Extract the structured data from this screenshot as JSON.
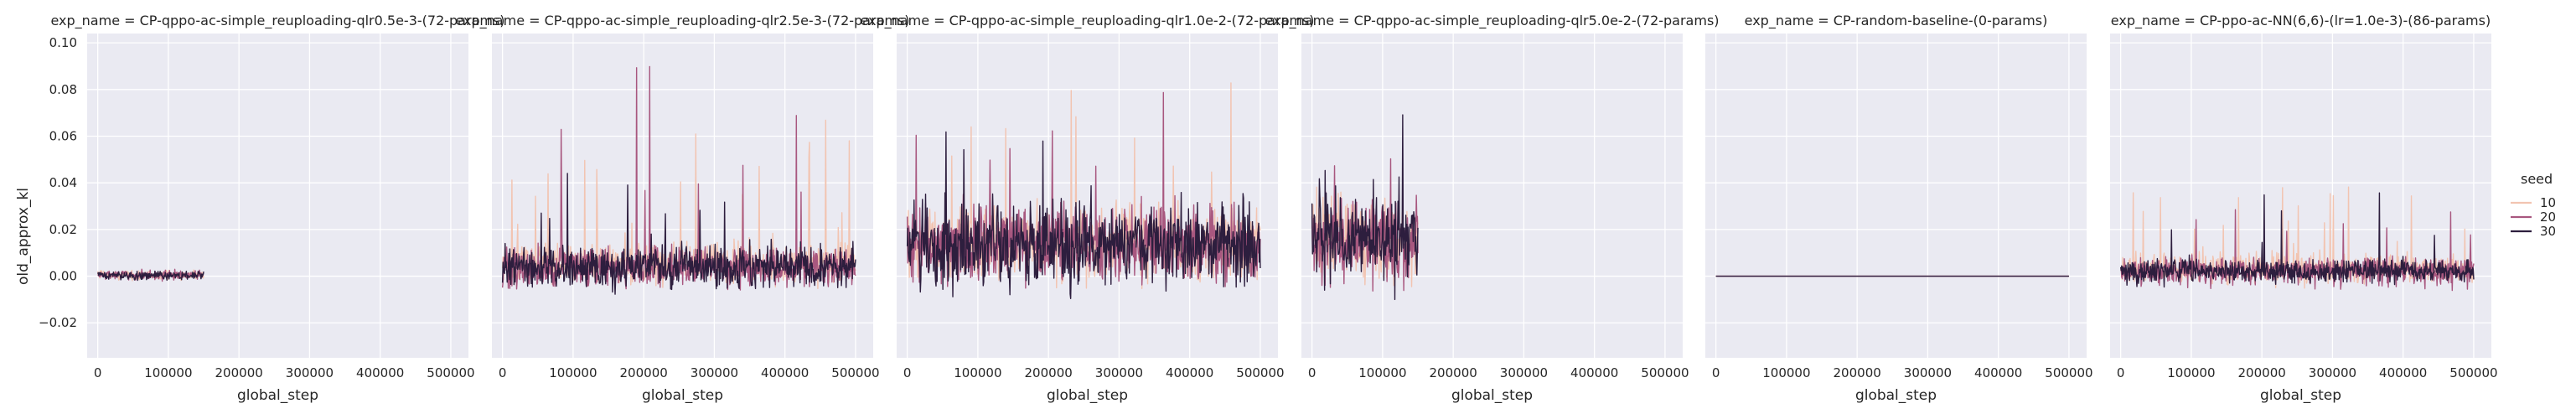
{
  "chart_data": {
    "type": "line",
    "ylabel": "old_approx_kl",
    "xlabel": "global_step",
    "xlim": [
      -15000,
      525000
    ],
    "ylim": [
      -0.035,
      0.104
    ],
    "xticks": [
      0,
      100000,
      200000,
      300000,
      400000,
      500000
    ],
    "xtick_labels": [
      "0",
      "100000",
      "200000",
      "300000",
      "400000",
      "500000"
    ],
    "yticks": [
      -0.02,
      0.0,
      0.02,
      0.04,
      0.06,
      0.08,
      0.1
    ],
    "ytick_labels": [
      "−0.02",
      "0.00",
      "0.02",
      "0.04",
      "0.06",
      "0.08",
      "0.10"
    ],
    "grid": true,
    "legend": {
      "title": "seed",
      "placement": "right",
      "entries": [
        {
          "label": "10",
          "color": "#f2c4b1"
        },
        {
          "label": "20",
          "color": "#a8577f"
        },
        {
          "label": "30",
          "color": "#2d1e3e"
        }
      ]
    },
    "facets": [
      {
        "title": "exp_name = CP-qppo-ac-simple_reuploading-qlr0.5e-3-(72-params)",
        "x_range": [
          0,
          150000
        ],
        "series": [
          {
            "seed": "10",
            "mean": 0.0005,
            "spread": 0.0015,
            "spike_prob": 0.0,
            "spike_max": 0.0
          },
          {
            "seed": "20",
            "mean": 0.0005,
            "spread": 0.0016,
            "spike_prob": 0.0,
            "spike_max": 0.0
          },
          {
            "seed": "30",
            "mean": 0.0003,
            "spread": 0.0015,
            "spike_prob": 0.0,
            "spike_max": 0.0
          }
        ]
      },
      {
        "title": "exp_name = CP-qppo-ac-simple_reuploading-qlr2.5e-3-(72-params)",
        "x_range": [
          0,
          500000
        ],
        "series": [
          {
            "seed": "10",
            "mean": 0.006,
            "spread": 0.007,
            "spike_prob": 0.025,
            "spike_max": 0.068
          },
          {
            "seed": "20",
            "mean": 0.004,
            "spread": 0.007,
            "spike_prob": 0.02,
            "spike_max": 0.097
          },
          {
            "seed": "30",
            "mean": 0.004,
            "spread": 0.007,
            "spike_prob": 0.012,
            "spike_max": 0.045
          }
        ]
      },
      {
        "title": "exp_name = CP-qppo-ac-simple_reuploading-qlr1.0e-2-(72-params)",
        "x_range": [
          0,
          500000
        ],
        "series": [
          {
            "seed": "10",
            "mean": 0.014,
            "spread": 0.012,
            "spike_prob": 0.02,
            "spike_max": 0.093
          },
          {
            "seed": "20",
            "mean": 0.014,
            "spread": 0.013,
            "spike_prob": 0.015,
            "spike_max": 0.083
          },
          {
            "seed": "30",
            "mean": 0.013,
            "spread": 0.014,
            "spike_prob": 0.01,
            "spike_max": 0.064
          }
        ]
      },
      {
        "title": "exp_name = CP-qppo-ac-simple_reuploading-qlr5.0e-2-(72-params)",
        "x_range": [
          0,
          150000
        ],
        "series": [
          {
            "seed": "10",
            "mean": 0.016,
            "spread": 0.014,
            "spike_prob": 0.03,
            "spike_max": 0.07
          },
          {
            "seed": "20",
            "mean": 0.016,
            "spread": 0.015,
            "spike_prob": 0.03,
            "spike_max": 0.07
          },
          {
            "seed": "30",
            "mean": 0.016,
            "spread": 0.016,
            "spike_prob": 0.035,
            "spike_max": 0.07
          }
        ]
      },
      {
        "title": "exp_name = CP-random-baseline-(0-params)",
        "x_range": [
          0,
          500000
        ],
        "series": [
          {
            "seed": "10",
            "mean": 0.0,
            "spread": 0.0,
            "spike_prob": 0.0,
            "spike_max": 0.0
          },
          {
            "seed": "20",
            "mean": 0.0,
            "spread": 0.0,
            "spike_prob": 0.0,
            "spike_max": 0.0
          },
          {
            "seed": "30",
            "mean": 0.0,
            "spread": 0.0,
            "spike_prob": 0.0,
            "spike_max": 0.0
          }
        ]
      },
      {
        "title": "exp_name = CP-ppo-ac-NN(6,6)-(lr=1.0e-3)-(86-params)",
        "x_range": [
          0,
          500000
        ],
        "series": [
          {
            "seed": "10",
            "mean": 0.003,
            "spread": 0.005,
            "spike_prob": 0.03,
            "spike_max": 0.04
          },
          {
            "seed": "20",
            "mean": 0.002,
            "spread": 0.005,
            "spike_prob": 0.02,
            "spike_max": 0.035
          },
          {
            "seed": "30",
            "mean": 0.002,
            "spread": 0.004,
            "spike_prob": 0.01,
            "spike_max": 0.039
          }
        ]
      }
    ]
  }
}
